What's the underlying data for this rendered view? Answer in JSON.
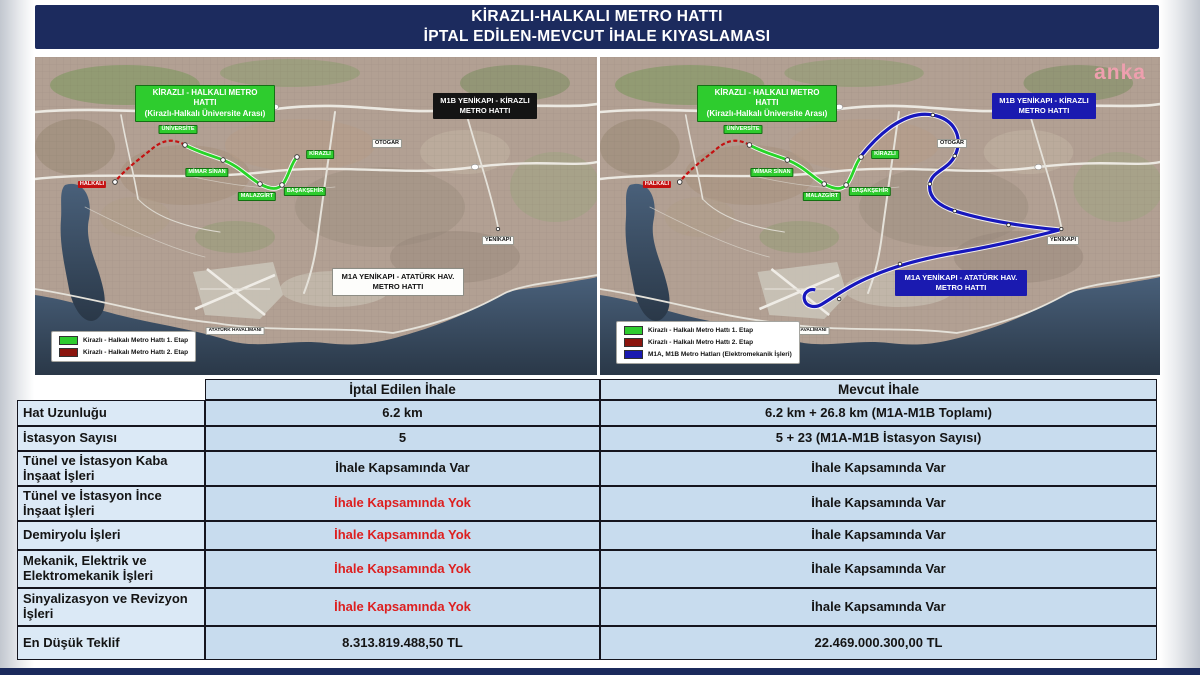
{
  "title": {
    "line1": "KİRAZLI-HALKALI METRO HATTI",
    "line2": "İPTAL EDİLEN-MEVCUT İHALE KIYASLAMASI"
  },
  "watermark": "anka",
  "map_labels": {
    "line_title_1": "KİRAZLI - HALKALI METRO HATTI",
    "line_title_2": "(Kirazlı-Halkalı Üniversite Arası)",
    "m1b": "M1B YENİKAPI - KİRAZLI METRO HATTI",
    "m1a": "M1A YENİKAPI - ATATÜRK HAV. METRO HATTI",
    "stations": {
      "halkali": "HALKALI",
      "universite": "ÜNİVERSİTE",
      "mimar_sinan": "MİMAR SİNAN",
      "malazgirt": "MALAZGİRT",
      "basaksehir": "BAŞAKŞEHİR",
      "kirazli": "KİRAZLI",
      "yenikapi": "YENİKAPI",
      "otogar": "OTOGAR",
      "airport": "ATATÜRK HAVALİMANI"
    }
  },
  "legend": {
    "etap1": "Kirazlı - Halkalı Metro Hattı 1. Etap",
    "etap2": "Kirazlı - Halkalı Metro Hattı 2. Etap",
    "elektromekanik": "M1A, M1B Metro Hatları (Elektromekanik İşleri)"
  },
  "table": {
    "headers": {
      "cancelled": "İptal Edilen İhale",
      "current": "Mevcut İhale"
    },
    "rows": [
      {
        "label": "Hat Uzunluğu",
        "cancelled": "6.2 km",
        "current": "6.2 km + 26.8 km (M1A-M1B Toplamı)",
        "cancelled_red": false
      },
      {
        "label": "İstasyon Sayısı",
        "cancelled": "5",
        "current": "5 + 23 (M1A-M1B İstasyon Sayısı)",
        "cancelled_red": false
      },
      {
        "label": "Tünel ve İstasyon Kaba İnşaat İşleri",
        "cancelled": "İhale Kapsamında Var",
        "current": "İhale Kapsamında Var",
        "cancelled_red": false
      },
      {
        "label": "Tünel ve İstasyon İnce İnşaat İşleri",
        "cancelled": "İhale Kapsamında Yok",
        "current": "İhale Kapsamında Var",
        "cancelled_red": true
      },
      {
        "label": "Demiryolu İşleri",
        "cancelled": "İhale Kapsamında Yok",
        "current": "İhale Kapsamında Var",
        "cancelled_red": true
      },
      {
        "label": "Mekanik, Elektrik ve Elektromekanik İşleri",
        "cancelled": "İhale Kapsamında Yok",
        "current": "İhale Kapsamında Var",
        "cancelled_red": true
      },
      {
        "label": "Sinyalizasyon ve Revizyon İşleri",
        "cancelled": "İhale Kapsamında Yok",
        "current": "İhale Kapsamında Var",
        "cancelled_red": true
      },
      {
        "label": "En Düşük Teklif",
        "cancelled": "8.313.819.488,50 TL",
        "current": "22.469.000.300,00 TL",
        "cancelled_red": false
      }
    ]
  },
  "chart_data": {
    "type": "table",
    "title": "KİRAZLI-HALKALI METRO HATTI — İPTAL EDİLEN-MEVCUT İHALE KIYASLAMASI",
    "columns": [
      "",
      "İptal Edilen İhale",
      "Mevcut İhale"
    ],
    "rows": [
      [
        "Hat Uzunluğu",
        "6.2 km",
        "6.2 km + 26.8 km (M1A-M1B Toplamı)"
      ],
      [
        "İstasyon Sayısı",
        "5",
        "5 + 23 (M1A-M1B İstasyon Sayısı)"
      ],
      [
        "Tünel ve İstasyon Kaba İnşaat İşleri",
        "İhale Kapsamında Var",
        "İhale Kapsamında Var"
      ],
      [
        "Tünel ve İstasyon İnce İnşaat İşleri",
        "İhale Kapsamında Yok",
        "İhale Kapsamında Var"
      ],
      [
        "Demiryolu İşleri",
        "İhale Kapsamında Yok",
        "İhale Kapsamında Var"
      ],
      [
        "Mekanik, Elektrik ve Elektromekanik İşleri",
        "İhale Kapsamında Yok",
        "İhale Kapsamında Var"
      ],
      [
        "Sinyalizasyon ve Revizyon İşleri",
        "İhale Kapsamında Yok",
        "İhale Kapsamında Var"
      ],
      [
        "En Düşük Teklif",
        "8.313.819.488,50 TL",
        "22.469.000.300,00 TL"
      ]
    ]
  },
  "colors": {
    "accent_navy": "#1c2b5e",
    "etap1_green": "#2ecc2e",
    "etap2_red": "#8b150e",
    "electro_blue": "#1a1ab0",
    "warning_red": "#dd1f1f"
  }
}
